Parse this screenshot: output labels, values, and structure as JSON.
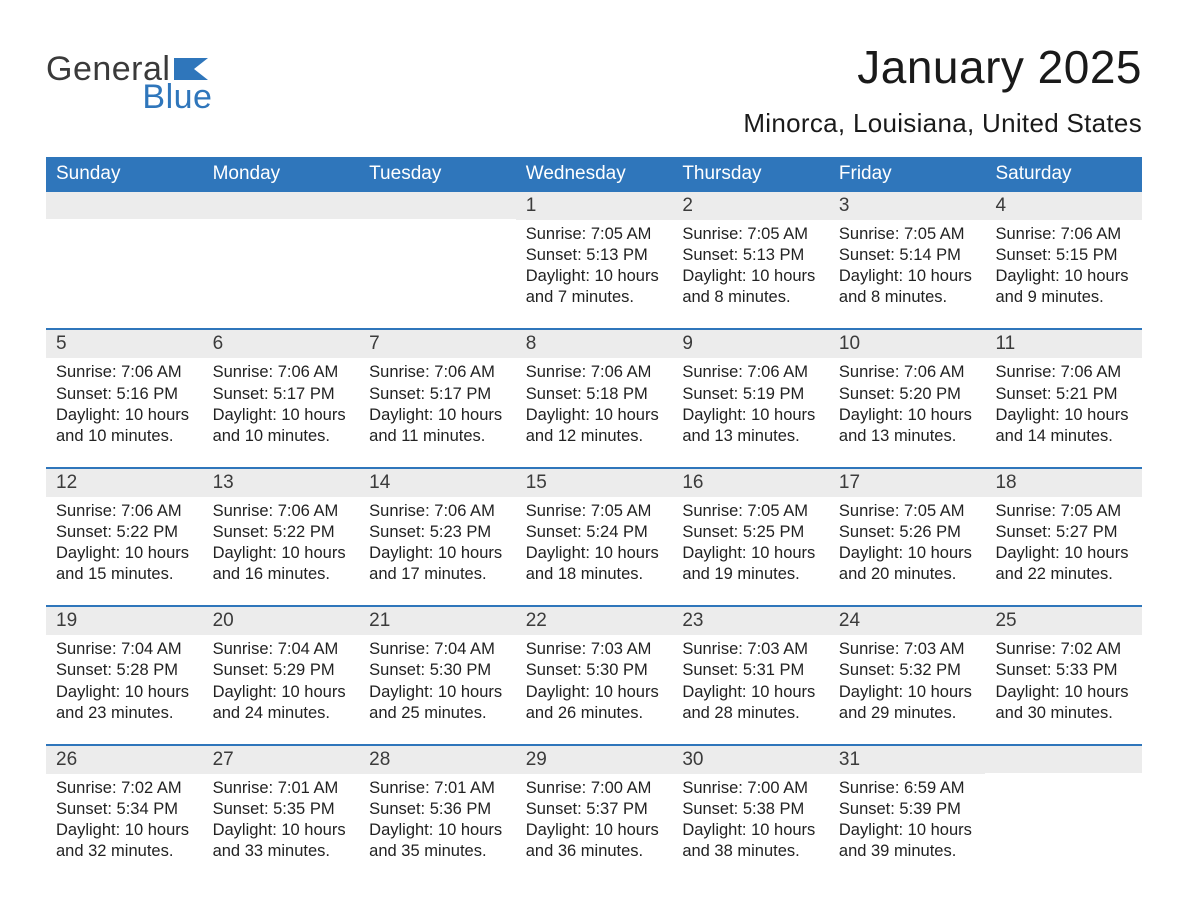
{
  "logo": {
    "text1": "General",
    "text2": "Blue",
    "flag_color": "#2f76bb"
  },
  "header": {
    "month_title": "January 2025",
    "location": "Minorca, Louisiana, United States"
  },
  "colors": {
    "header_bg": "#2f76bb",
    "header_text": "#ffffff",
    "daynum_bg": "#ececec",
    "text": "#222222",
    "week_border": "#2f76bb"
  },
  "day_headers": [
    "Sunday",
    "Monday",
    "Tuesday",
    "Wednesday",
    "Thursday",
    "Friday",
    "Saturday"
  ],
  "weeks": [
    [
      {
        "n": "",
        "sunrise": "",
        "sunset": "",
        "dl1": "",
        "dl2": ""
      },
      {
        "n": "",
        "sunrise": "",
        "sunset": "",
        "dl1": "",
        "dl2": ""
      },
      {
        "n": "",
        "sunrise": "",
        "sunset": "",
        "dl1": "",
        "dl2": ""
      },
      {
        "n": "1",
        "sunrise": "Sunrise: 7:05 AM",
        "sunset": "Sunset: 5:13 PM",
        "dl1": "Daylight: 10 hours",
        "dl2": "and 7 minutes."
      },
      {
        "n": "2",
        "sunrise": "Sunrise: 7:05 AM",
        "sunset": "Sunset: 5:13 PM",
        "dl1": "Daylight: 10 hours",
        "dl2": "and 8 minutes."
      },
      {
        "n": "3",
        "sunrise": "Sunrise: 7:05 AM",
        "sunset": "Sunset: 5:14 PM",
        "dl1": "Daylight: 10 hours",
        "dl2": "and 8 minutes."
      },
      {
        "n": "4",
        "sunrise": "Sunrise: 7:06 AM",
        "sunset": "Sunset: 5:15 PM",
        "dl1": "Daylight: 10 hours",
        "dl2": "and 9 minutes."
      }
    ],
    [
      {
        "n": "5",
        "sunrise": "Sunrise: 7:06 AM",
        "sunset": "Sunset: 5:16 PM",
        "dl1": "Daylight: 10 hours",
        "dl2": "and 10 minutes."
      },
      {
        "n": "6",
        "sunrise": "Sunrise: 7:06 AM",
        "sunset": "Sunset: 5:17 PM",
        "dl1": "Daylight: 10 hours",
        "dl2": "and 10 minutes."
      },
      {
        "n": "7",
        "sunrise": "Sunrise: 7:06 AM",
        "sunset": "Sunset: 5:17 PM",
        "dl1": "Daylight: 10 hours",
        "dl2": "and 11 minutes."
      },
      {
        "n": "8",
        "sunrise": "Sunrise: 7:06 AM",
        "sunset": "Sunset: 5:18 PM",
        "dl1": "Daylight: 10 hours",
        "dl2": "and 12 minutes."
      },
      {
        "n": "9",
        "sunrise": "Sunrise: 7:06 AM",
        "sunset": "Sunset: 5:19 PM",
        "dl1": "Daylight: 10 hours",
        "dl2": "and 13 minutes."
      },
      {
        "n": "10",
        "sunrise": "Sunrise: 7:06 AM",
        "sunset": "Sunset: 5:20 PM",
        "dl1": "Daylight: 10 hours",
        "dl2": "and 13 minutes."
      },
      {
        "n": "11",
        "sunrise": "Sunrise: 7:06 AM",
        "sunset": "Sunset: 5:21 PM",
        "dl1": "Daylight: 10 hours",
        "dl2": "and 14 minutes."
      }
    ],
    [
      {
        "n": "12",
        "sunrise": "Sunrise: 7:06 AM",
        "sunset": "Sunset: 5:22 PM",
        "dl1": "Daylight: 10 hours",
        "dl2": "and 15 minutes."
      },
      {
        "n": "13",
        "sunrise": "Sunrise: 7:06 AM",
        "sunset": "Sunset: 5:22 PM",
        "dl1": "Daylight: 10 hours",
        "dl2": "and 16 minutes."
      },
      {
        "n": "14",
        "sunrise": "Sunrise: 7:06 AM",
        "sunset": "Sunset: 5:23 PM",
        "dl1": "Daylight: 10 hours",
        "dl2": "and 17 minutes."
      },
      {
        "n": "15",
        "sunrise": "Sunrise: 7:05 AM",
        "sunset": "Sunset: 5:24 PM",
        "dl1": "Daylight: 10 hours",
        "dl2": "and 18 minutes."
      },
      {
        "n": "16",
        "sunrise": "Sunrise: 7:05 AM",
        "sunset": "Sunset: 5:25 PM",
        "dl1": "Daylight: 10 hours",
        "dl2": "and 19 minutes."
      },
      {
        "n": "17",
        "sunrise": "Sunrise: 7:05 AM",
        "sunset": "Sunset: 5:26 PM",
        "dl1": "Daylight: 10 hours",
        "dl2": "and 20 minutes."
      },
      {
        "n": "18",
        "sunrise": "Sunrise: 7:05 AM",
        "sunset": "Sunset: 5:27 PM",
        "dl1": "Daylight: 10 hours",
        "dl2": "and 22 minutes."
      }
    ],
    [
      {
        "n": "19",
        "sunrise": "Sunrise: 7:04 AM",
        "sunset": "Sunset: 5:28 PM",
        "dl1": "Daylight: 10 hours",
        "dl2": "and 23 minutes."
      },
      {
        "n": "20",
        "sunrise": "Sunrise: 7:04 AM",
        "sunset": "Sunset: 5:29 PM",
        "dl1": "Daylight: 10 hours",
        "dl2": "and 24 minutes."
      },
      {
        "n": "21",
        "sunrise": "Sunrise: 7:04 AM",
        "sunset": "Sunset: 5:30 PM",
        "dl1": "Daylight: 10 hours",
        "dl2": "and 25 minutes."
      },
      {
        "n": "22",
        "sunrise": "Sunrise: 7:03 AM",
        "sunset": "Sunset: 5:30 PM",
        "dl1": "Daylight: 10 hours",
        "dl2": "and 26 minutes."
      },
      {
        "n": "23",
        "sunrise": "Sunrise: 7:03 AM",
        "sunset": "Sunset: 5:31 PM",
        "dl1": "Daylight: 10 hours",
        "dl2": "and 28 minutes."
      },
      {
        "n": "24",
        "sunrise": "Sunrise: 7:03 AM",
        "sunset": "Sunset: 5:32 PM",
        "dl1": "Daylight: 10 hours",
        "dl2": "and 29 minutes."
      },
      {
        "n": "25",
        "sunrise": "Sunrise: 7:02 AM",
        "sunset": "Sunset: 5:33 PM",
        "dl1": "Daylight: 10 hours",
        "dl2": "and 30 minutes."
      }
    ],
    [
      {
        "n": "26",
        "sunrise": "Sunrise: 7:02 AM",
        "sunset": "Sunset: 5:34 PM",
        "dl1": "Daylight: 10 hours",
        "dl2": "and 32 minutes."
      },
      {
        "n": "27",
        "sunrise": "Sunrise: 7:01 AM",
        "sunset": "Sunset: 5:35 PM",
        "dl1": "Daylight: 10 hours",
        "dl2": "and 33 minutes."
      },
      {
        "n": "28",
        "sunrise": "Sunrise: 7:01 AM",
        "sunset": "Sunset: 5:36 PM",
        "dl1": "Daylight: 10 hours",
        "dl2": "and 35 minutes."
      },
      {
        "n": "29",
        "sunrise": "Sunrise: 7:00 AM",
        "sunset": "Sunset: 5:37 PM",
        "dl1": "Daylight: 10 hours",
        "dl2": "and 36 minutes."
      },
      {
        "n": "30",
        "sunrise": "Sunrise: 7:00 AM",
        "sunset": "Sunset: 5:38 PM",
        "dl1": "Daylight: 10 hours",
        "dl2": "and 38 minutes."
      },
      {
        "n": "31",
        "sunrise": "Sunrise: 6:59 AM",
        "sunset": "Sunset: 5:39 PM",
        "dl1": "Daylight: 10 hours",
        "dl2": "and 39 minutes."
      },
      {
        "n": "",
        "sunrise": "",
        "sunset": "",
        "dl1": "",
        "dl2": ""
      }
    ]
  ]
}
